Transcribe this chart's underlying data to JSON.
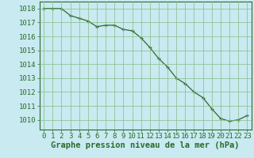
{
  "x": [
    0,
    1,
    2,
    3,
    4,
    5,
    6,
    7,
    8,
    9,
    10,
    11,
    12,
    13,
    14,
    15,
    16,
    17,
    18,
    19,
    20,
    21,
    22,
    23
  ],
  "y": [
    1018.0,
    1018.0,
    1018.0,
    1017.5,
    1017.3,
    1017.1,
    1016.7,
    1016.8,
    1016.8,
    1016.5,
    1016.4,
    1015.9,
    1015.2,
    1014.4,
    1013.8,
    1013.0,
    1012.6,
    1012.0,
    1011.6,
    1010.8,
    1010.1,
    1009.9,
    1010.0,
    1010.3
  ],
  "line_color": "#2d6a2d",
  "marker": "+",
  "marker_color": "#2d6a2d",
  "bg_color": "#c8eaf0",
  "grid_color": "#88bb88",
  "ylabel_ticks": [
    1010,
    1011,
    1012,
    1013,
    1014,
    1015,
    1016,
    1017,
    1018
  ],
  "xlabel": "Graphe pression niveau de la mer (hPa)",
  "xlabel_fontsize": 7.5,
  "tick_fontsize": 6.5,
  "ylim": [
    1009.3,
    1018.5
  ],
  "xlim": [
    -0.5,
    23.5
  ]
}
